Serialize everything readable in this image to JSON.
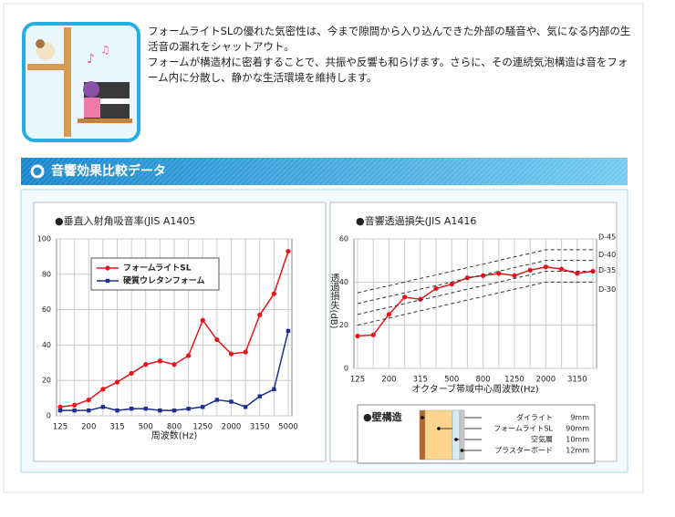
{
  "intro": {
    "paragraphs": [
      "フォームライトSLの優れた気密性は、今まで隙間から入り込んできた外部の騒音や、気になる内部の生活音の漏れをシャットアウト。",
      "フォームが構造材に密着することで、共振や反響も和らげます。さらに、その連続気泡構造は音をフォーム内に分散し、静かな生活環境を維持します。"
    ]
  },
  "section": {
    "title": "音響効果比較データ"
  },
  "chart_data": [
    {
      "type": "line",
      "title": "●垂直入射角吸音率(JIS A1405",
      "x_label": "周波数(Hz)",
      "categories": [
        "125",
        null,
        "200",
        null,
        "315",
        null,
        "500",
        null,
        "800",
        null,
        "1250",
        null,
        "2000",
        null,
        "3150",
        null,
        "5000"
      ],
      "ylim": [
        0,
        100
      ],
      "yticks": [
        0,
        20,
        40,
        60,
        80,
        100
      ],
      "grid": true,
      "legend": "upper-left",
      "series": [
        {
          "name": "フォームライトSL",
          "color": "#e8141c",
          "marker": "circle",
          "values": [
            5,
            6,
            9,
            15,
            19,
            24,
            29,
            31,
            29,
            34,
            54,
            43,
            35,
            36,
            57,
            69,
            93
          ]
        },
        {
          "name": "硬質ウレタンフォーム",
          "color": "#1c2f8f",
          "marker": "square",
          "values": [
            3,
            3,
            3,
            5,
            3,
            4,
            4,
            3,
            3,
            4,
            5,
            9,
            8,
            5,
            11,
            15,
            48
          ]
        }
      ]
    },
    {
      "type": "line",
      "title": "●音響透過損失(JIS A1416",
      "x_label": "オクターブ帯域中心周波数(Hz)",
      "y_label": "透過損失(dB)",
      "categories": [
        "125",
        null,
        "200",
        null,
        "315",
        null,
        "500",
        null,
        "800",
        null,
        "1250",
        null,
        "2000",
        null,
        "3150",
        null
      ],
      "ylim": [
        0,
        60
      ],
      "yticks": [
        0,
        20,
        40,
        60
      ],
      "grid": true,
      "series": [
        {
          "color": "#e8141c",
          "marker": "circle",
          "values": [
            15,
            15.5,
            25,
            33,
            32,
            37,
            39,
            42,
            43,
            44,
            43,
            45.5,
            47,
            46,
            44,
            45
          ]
        },
        {
          "name": "D-45",
          "color": "#333333",
          "dash": true,
          "values": [
            35,
            36.7,
            38.3,
            40,
            41.7,
            43.3,
            45,
            46.7,
            48.3,
            50,
            51.7,
            53.3,
            55,
            55,
            55,
            55
          ]
        },
        {
          "name": "D-40",
          "color": "#333333",
          "dash": true,
          "values": [
            30,
            31.7,
            33.3,
            35,
            36.7,
            38.3,
            40,
            41.7,
            43.3,
            45,
            46.7,
            48.3,
            50,
            50,
            50,
            50
          ]
        },
        {
          "name": "D-35",
          "color": "#333333",
          "dash": true,
          "values": [
            25,
            26.7,
            28.3,
            30,
            31.7,
            33.3,
            35,
            36.7,
            38.3,
            40,
            41.7,
            43.3,
            45,
            45,
            45,
            45
          ]
        },
        {
          "name": "D-30",
          "color": "#333333",
          "dash": true,
          "values": [
            20,
            21.7,
            23.3,
            25,
            26.7,
            28.3,
            30,
            31.7,
            33.3,
            35,
            36.7,
            38.3,
            40,
            40,
            40,
            40
          ]
        }
      ]
    }
  ],
  "wall": {
    "title": "●壁構造",
    "layers": [
      {
        "name": "ダイライト",
        "thickness": "9mm",
        "color": "#b8652a"
      },
      {
        "name": "フォームライトSL",
        "thickness": "90mm",
        "color": "#fcd68e"
      },
      {
        "name": "空気層",
        "thickness": "10mm",
        "color": "#d4ecf6"
      },
      {
        "name": "プラスターボード",
        "thickness": "12mm",
        "color": "#c8c8c8"
      }
    ]
  }
}
